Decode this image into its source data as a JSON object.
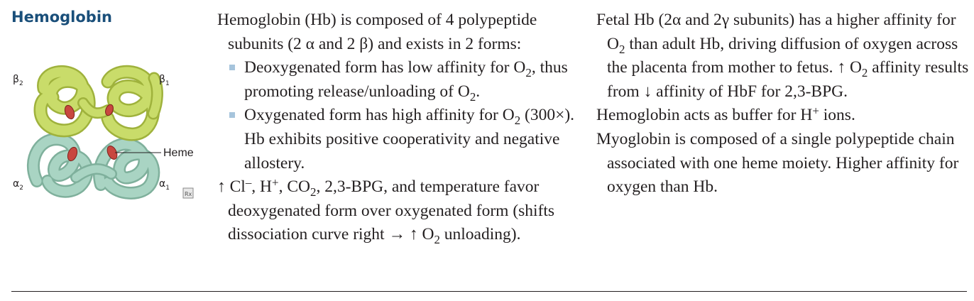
{
  "title": "Hemoglobin",
  "figure": {
    "labels": {
      "beta2": "β",
      "beta2_sub": "2",
      "beta1": "β",
      "beta1_sub": "1",
      "alpha2": "α",
      "alpha2_sub": "2",
      "alpha1": "α",
      "alpha1_sub": "1",
      "heme": "Heme",
      "rx": "Rx"
    }
  },
  "col1": {
    "intro": {
      "a": "Hemoglobin (Hb) is composed of 4 polypeptide subunits (2 α and 2 β) and exists in 2 forms:"
    },
    "bullet1": {
      "a": "Deoxygenated form has low affinity for O",
      "s1": "2",
      "b": ", thus promoting release/unloading of O",
      "s2": "2",
      "c": "."
    },
    "bullet2": {
      "a": "Oxygenated form has high affinity for O",
      "s1": "2",
      "b": " (300×). Hb exhibits positive cooperativity and negative allostery."
    },
    "effect": {
      "a": "↑ Cl",
      "sup1": "–",
      "b": ", H",
      "sup2": "+",
      "c": ", CO",
      "s1": "2",
      "d": ", 2,3-BPG, and temperature favor deoxygenated form over oxygenated form (shifts dissociation curve right → ↑ O",
      "s2": "2",
      "e": " unloading)."
    }
  },
  "col2": {
    "fetal": {
      "a": "Fetal Hb (2α and 2γ subunits) has a higher affinity for O",
      "s1": "2",
      "b": " than adult Hb, driving diffusion of oxygen across the placenta from mother to fetus. ↑ O",
      "s2": "2",
      "c": " affinity results from ↓ affinity of HbF for 2,3-BPG."
    },
    "buffer": {
      "a": "Hemoglobin acts as buffer for H",
      "sup": "+",
      "b": " ions."
    },
    "myo": {
      "a": "Myoglobin is composed of a single polypeptide chain associated with one heme moiety. Higher affinity for oxygen than Hb."
    }
  },
  "colors": {
    "title": "#1a4f7a",
    "bullet": "#a6c4dc",
    "beta": "#c9dc6a",
    "alpha": "#a9d4c3",
    "heme": "#c8473f"
  }
}
